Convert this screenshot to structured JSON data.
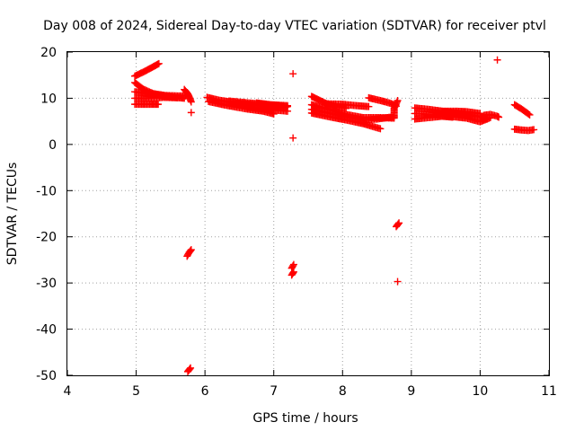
{
  "chart_data": {
    "type": "scatter",
    "title": "Day 008 of 2024, Sidereal Day-to-day VTEC variation (SDTVAR) for receiver ptvl",
    "xlabel": "GPS time / hours",
    "ylabel": "SDTVAR / TECUs",
    "xlim": [
      4,
      11
    ],
    "ylim": [
      -50,
      20
    ],
    "xticks": [
      4,
      5,
      6,
      7,
      8,
      9,
      10,
      11
    ],
    "yticks": [
      20,
      10,
      0,
      -10,
      -20,
      -30,
      -40,
      -50
    ],
    "xtick_labels": [
      "4",
      "5",
      "6",
      "7",
      "8",
      "9",
      "10",
      "11"
    ],
    "ytick_labels": [
      "20",
      "10",
      "0",
      "-10",
      "-20",
      "-30",
      "-40",
      "-50"
    ],
    "grid": true,
    "marker": "plus",
    "color": "#ff0000",
    "series": [
      {
        "name": "arc-a1",
        "segments": [
          [
            [
              4.98,
              14.8
            ],
            [
              5.12,
              15.8
            ],
            [
              5.22,
              16.6
            ],
            [
              5.33,
              17.5
            ]
          ]
        ]
      },
      {
        "name": "arc-a2",
        "segments": [
          [
            [
              4.98,
              13.4
            ],
            [
              5.1,
              12.0
            ],
            [
              5.25,
              11.0
            ],
            [
              5.42,
              10.6
            ],
            [
              5.6,
              10.5
            ],
            [
              5.72,
              10.5
            ]
          ]
        ]
      },
      {
        "name": "arc-a3",
        "segments": [
          [
            [
              4.98,
              11.4
            ],
            [
              5.15,
              11.0
            ],
            [
              5.35,
              10.6
            ],
            [
              5.55,
              10.2
            ],
            [
              5.7,
              10.0
            ]
          ]
        ]
      },
      {
        "name": "arc-a4",
        "segments": [
          [
            [
              4.98,
              10.0
            ],
            [
              5.2,
              10.0
            ],
            [
              5.4,
              10.2
            ],
            [
              5.6,
              10.1
            ]
          ]
        ]
      },
      {
        "name": "arc-a5",
        "segments": [
          [
            [
              4.98,
              8.7
            ],
            [
              5.1,
              8.7
            ],
            [
              5.25,
              8.7
            ],
            [
              5.32,
              8.7
            ]
          ]
        ]
      },
      {
        "name": "arc-a6",
        "segments": [
          [
            [
              5.7,
              11.9
            ],
            [
              5.75,
              11.0
            ],
            [
              5.78,
              10.0
            ],
            [
              5.8,
              9.2
            ]
          ]
        ]
      },
      {
        "name": "point-a7",
        "segments": [
          [
            [
              5.8,
              6.9
            ]
          ]
        ]
      },
      {
        "name": "arc-b1",
        "segments": [
          [
            [
              6.03,
              10.2
            ],
            [
              6.2,
              9.6
            ],
            [
              6.45,
              9.0
            ],
            [
              6.7,
              8.6
            ],
            [
              6.95,
              8.4
            ],
            [
              7.18,
              8.1
            ]
          ]
        ]
      },
      {
        "name": "arc-b2",
        "segments": [
          [
            [
              6.05,
              9.3
            ],
            [
              6.3,
              8.5
            ],
            [
              6.6,
              7.7
            ],
            [
              6.85,
              7.2
            ],
            [
              7.0,
              6.6
            ]
          ]
        ]
      },
      {
        "name": "arc-b3",
        "segments": [
          [
            [
              6.35,
              9.4
            ],
            [
              6.7,
              8.9
            ],
            [
              7.0,
              8.5
            ],
            [
              7.2,
              8.2
            ]
          ]
        ]
      },
      {
        "name": "arc-b4",
        "segments": [
          [
            [
              6.6,
              8.0
            ],
            [
              6.9,
              7.6
            ],
            [
              7.2,
              7.2
            ]
          ]
        ]
      },
      {
        "name": "arc-b5",
        "segments": [
          [
            [
              6.75,
              9.0
            ],
            [
              6.95,
              8.6
            ],
            [
              7.2,
              8.4
            ]
          ]
        ]
      },
      {
        "name": "point-b6",
        "segments": [
          [
            [
              7.28,
              15.3
            ]
          ]
        ]
      },
      {
        "name": "point-b7",
        "segments": [
          [
            [
              7.28,
              1.4
            ]
          ]
        ]
      },
      {
        "name": "arc-c1",
        "segments": [
          [
            [
              7.55,
              10.4
            ],
            [
              7.7,
              9.3
            ],
            [
              7.8,
              8.6
            ],
            [
              7.95,
              8.1
            ],
            [
              8.05,
              7.8
            ]
          ]
        ]
      },
      {
        "name": "arc-c2",
        "segments": [
          [
            [
              7.55,
              8.6
            ],
            [
              7.8,
              7.6
            ],
            [
              8.05,
              6.5
            ],
            [
              8.3,
              5.8
            ],
            [
              8.55,
              5.8
            ],
            [
              8.75,
              5.7
            ]
          ]
        ]
      },
      {
        "name": "arc-c3",
        "segments": [
          [
            [
              7.55,
              7.6
            ],
            [
              7.8,
              6.8
            ],
            [
              8.05,
              6.0
            ],
            [
              8.3,
              5.3
            ],
            [
              8.5,
              5.5
            ],
            [
              8.75,
              6.0
            ]
          ]
        ]
      },
      {
        "name": "arc-c4",
        "segments": [
          [
            [
              7.55,
              6.8
            ],
            [
              7.8,
              6.0
            ],
            [
              8.05,
              5.3
            ],
            [
              8.3,
              4.5
            ],
            [
              8.55,
              3.4
            ]
          ]
        ]
      },
      {
        "name": "arc-c5",
        "segments": [
          [
            [
              7.75,
              8.8
            ],
            [
              8.0,
              8.7
            ],
            [
              8.2,
              8.4
            ],
            [
              8.38,
              8.2
            ]
          ]
        ]
      },
      {
        "name": "arc-c6",
        "segments": [
          [
            [
              8.38,
              10.1
            ],
            [
              8.55,
              9.5
            ],
            [
              8.7,
              8.9
            ],
            [
              8.78,
              8.3
            ]
          ]
        ]
      },
      {
        "name": "arc-c7",
        "segments": [
          [
            [
              8.75,
              6.0
            ],
            [
              8.75,
              7.8
            ],
            [
              8.8,
              9.5
            ]
          ]
        ]
      },
      {
        "name": "arc-d1",
        "segments": [
          [
            [
              9.05,
              7.9
            ],
            [
              9.25,
              7.6
            ],
            [
              9.5,
              7.1
            ],
            [
              9.75,
              6.6
            ],
            [
              10.0,
              6.0
            ],
            [
              10.1,
              5.5
            ]
          ]
        ]
      },
      {
        "name": "arc-d2",
        "segments": [
          [
            [
              9.05,
              6.7
            ],
            [
              9.3,
              6.5
            ],
            [
              9.55,
              6.1
            ],
            [
              9.8,
              5.7
            ],
            [
              10.0,
              4.9
            ],
            [
              10.15,
              5.8
            ]
          ]
        ]
      },
      {
        "name": "arc-d3",
        "segments": [
          [
            [
              9.05,
              5.5
            ],
            [
              9.25,
              5.8
            ],
            [
              9.45,
              6.1
            ],
            [
              9.6,
              5.9
            ]
          ]
        ]
      },
      {
        "name": "arc-d4",
        "segments": [
          [
            [
              9.45,
              7.2
            ],
            [
              9.65,
              7.2
            ],
            [
              9.8,
              7.1
            ],
            [
              10.0,
              6.7
            ]
          ]
        ]
      },
      {
        "name": "arc-d5",
        "segments": [
          [
            [
              10.05,
              6.3
            ],
            [
              10.15,
              6.5
            ],
            [
              10.25,
              6.1
            ],
            [
              10.27,
              5.9
            ]
          ]
        ]
      },
      {
        "name": "point-d6",
        "segments": [
          [
            [
              10.25,
              18.3
            ]
          ]
        ]
      },
      {
        "name": "arc-e1",
        "segments": [
          [
            [
              10.5,
              8.6
            ],
            [
              10.6,
              7.7
            ],
            [
              10.72,
              6.4
            ]
          ]
        ]
      },
      {
        "name": "arc-e2",
        "segments": [
          [
            [
              10.5,
              3.3
            ],
            [
              10.62,
              3.1
            ],
            [
              10.7,
              3.0
            ],
            [
              10.78,
              3.2
            ]
          ]
        ]
      },
      {
        "name": "arc-f1",
        "segments": [
          [
            [
              5.74,
              -24.2
            ],
            [
              5.77,
              -23.4
            ],
            [
              5.8,
              -22.8
            ]
          ]
        ]
      },
      {
        "name": "arc-f2",
        "segments": [
          [
            [
              5.75,
              -49.2
            ],
            [
              5.79,
              -48.4
            ]
          ]
        ]
      },
      {
        "name": "arc-g1",
        "segments": [
          [
            [
              7.26,
              -26.8
            ],
            [
              7.29,
              -26.0
            ]
          ]
        ]
      },
      {
        "name": "arc-g2",
        "segments": [
          [
            [
              7.26,
              -28.3
            ],
            [
              7.29,
              -27.6
            ]
          ]
        ]
      },
      {
        "name": "arc-h1",
        "segments": [
          [
            [
              8.78,
              -17.8
            ],
            [
              8.82,
              -17.0
            ]
          ]
        ]
      },
      {
        "name": "point-h2",
        "segments": [
          [
            [
              8.8,
              -29.7
            ]
          ]
        ]
      }
    ]
  }
}
